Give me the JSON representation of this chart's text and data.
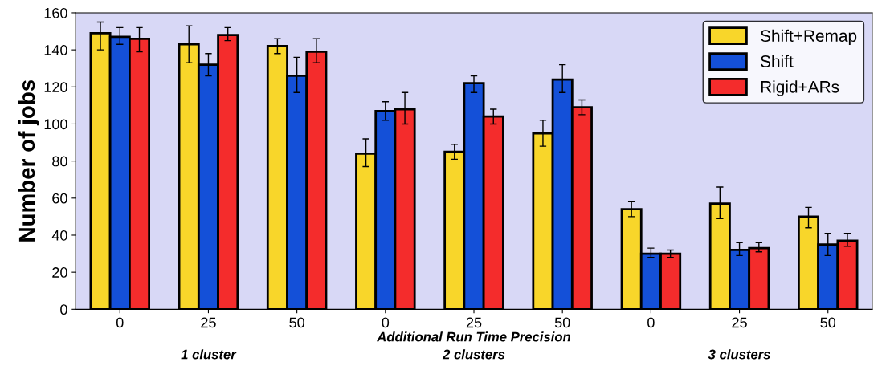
{
  "chart_data": {
    "type": "bar",
    "ylabel": "Number of jobs",
    "xlabel": "Additional Run Time Precision",
    "categories": [
      "0",
      "25",
      "50",
      "0",
      "25",
      "50",
      "0",
      "25",
      "50"
    ],
    "series": [
      {
        "name": "Shift+Remap",
        "color": "#f8d62a",
        "values": [
          149,
          143,
          142,
          84,
          85,
          95,
          54,
          57,
          50
        ],
        "errors": [
          [
            140,
            155
          ],
          [
            133,
            153
          ],
          [
            138,
            146
          ],
          [
            77,
            92
          ],
          [
            81,
            89
          ],
          [
            88,
            102
          ],
          [
            50,
            58
          ],
          [
            49,
            66
          ],
          [
            44,
            55
          ]
        ]
      },
      {
        "name": "Shift",
        "color": "#1450d8",
        "values": [
          147,
          132,
          126,
          107,
          122,
          124,
          30,
          32,
          35
        ],
        "errors": [
          [
            143,
            152
          ],
          [
            126,
            138
          ],
          [
            117,
            136
          ],
          [
            102,
            112
          ],
          [
            117,
            126
          ],
          [
            117,
            132
          ],
          [
            28,
            33
          ],
          [
            29,
            36
          ],
          [
            29,
            41
          ]
        ]
      },
      {
        "name": "Rigid+ARs",
        "color": "#f42c2c",
        "values": [
          146,
          148,
          139,
          108,
          104,
          109,
          30,
          33,
          37
        ],
        "errors": [
          [
            139,
            152
          ],
          [
            145,
            152
          ],
          [
            133,
            146
          ],
          [
            100,
            117
          ],
          [
            100,
            108
          ],
          [
            105,
            113
          ],
          [
            28,
            32
          ],
          [
            31,
            36
          ],
          [
            34,
            41
          ]
        ]
      }
    ],
    "annotations": [
      "1 cluster",
      "2 clusters",
      "3 clusters"
    ],
    "ylim": [
      0,
      160
    ],
    "yticks": [
      0,
      20,
      40,
      60,
      80,
      100,
      120,
      140,
      160
    ],
    "legend": "top right",
    "grid": false
  }
}
